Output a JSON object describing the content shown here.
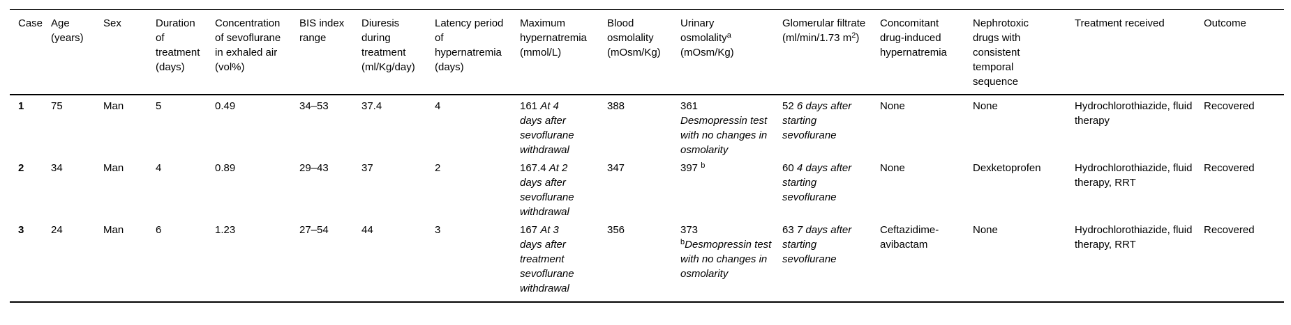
{
  "colors": {
    "background": "#ffffff",
    "text": "#000000",
    "rule": "#000000"
  },
  "table": {
    "columns": [
      {
        "key": "case",
        "label": [
          {
            "text": "Case"
          }
        ]
      },
      {
        "key": "age",
        "label": [
          {
            "text": "Age (years)"
          }
        ]
      },
      {
        "key": "sex",
        "label": [
          {
            "text": "Sex"
          }
        ]
      },
      {
        "key": "duration",
        "label": [
          {
            "text": "Duration of treatment (days)"
          }
        ]
      },
      {
        "key": "concentration",
        "label": [
          {
            "text": "Concentration of sevoflurane in exhaled air (vol%)"
          }
        ]
      },
      {
        "key": "bis",
        "label": [
          {
            "text": "BIS index range"
          }
        ]
      },
      {
        "key": "diuresis",
        "label": [
          {
            "text": "Diuresis during treatment (ml/Kg/day)"
          }
        ]
      },
      {
        "key": "latency",
        "label": [
          {
            "text": "Latency period of hypernatremia (days)"
          }
        ]
      },
      {
        "key": "max_hypernatremia",
        "label": [
          {
            "text": "Maximum hypernatremia (mmol/L)"
          }
        ]
      },
      {
        "key": "blood_osmolality",
        "label": [
          {
            "text": "Blood osmolality (mOsm/Kg)"
          }
        ]
      },
      {
        "key": "urinary_osmolality",
        "label": [
          {
            "text": "Urinary osmolality"
          },
          {
            "text": "a",
            "sup": true
          },
          {
            "text": " (mOsm/Kg)"
          }
        ]
      },
      {
        "key": "glomerular_filtrate",
        "label": [
          {
            "text": "Glomerular filtrate (ml/min/1.73 m"
          },
          {
            "text": "2",
            "sup": true
          },
          {
            "text": ")"
          }
        ]
      },
      {
        "key": "concomitant",
        "label": [
          {
            "text": "Concomitant drug-induced hypernatremia"
          }
        ]
      },
      {
        "key": "nephrotoxic",
        "label": [
          {
            "text": "Nephrotoxic drugs with consistent temporal sequence"
          }
        ]
      },
      {
        "key": "treatment",
        "label": [
          {
            "text": "Treatment received"
          }
        ]
      },
      {
        "key": "outcome",
        "label": [
          {
            "text": "Outcome"
          }
        ]
      }
    ],
    "rows": [
      {
        "case_id": "1",
        "cells": {
          "case": [
            {
              "text": "1",
              "bold": true
            }
          ],
          "age": [
            {
              "text": "75"
            }
          ],
          "sex": [
            {
              "text": "Man"
            }
          ],
          "duration": [
            {
              "text": "5"
            }
          ],
          "concentration": [
            {
              "text": "0.49"
            }
          ],
          "bis": [
            {
              "text": "34–53"
            }
          ],
          "diuresis": [
            {
              "text": "37.4"
            }
          ],
          "latency": [
            {
              "text": "4"
            }
          ],
          "max_hypernatremia": [
            {
              "text": "161 "
            },
            {
              "text": "At 4 days after sevoflurane withdrawal",
              "italic": true
            }
          ],
          "blood_osmolality": [
            {
              "text": "388"
            }
          ],
          "urinary_osmolality": [
            {
              "text": "361"
            },
            {
              "br": true
            },
            {
              "text": "Desmopressin test with no changes in osmolarity",
              "italic": true
            }
          ],
          "glomerular_filtrate": [
            {
              "text": "52 "
            },
            {
              "text": "6 days after starting sevoflurane",
              "italic": true
            }
          ],
          "concomitant": [
            {
              "text": "None"
            }
          ],
          "nephrotoxic": [
            {
              "text": "None"
            }
          ],
          "treatment": [
            {
              "text": "Hydrochlorothiazide, fluid therapy"
            }
          ],
          "outcome": [
            {
              "text": "Recovered"
            }
          ]
        }
      },
      {
        "case_id": "2",
        "cells": {
          "case": [
            {
              "text": "2",
              "bold": true
            }
          ],
          "age": [
            {
              "text": "34"
            }
          ],
          "sex": [
            {
              "text": "Man"
            }
          ],
          "duration": [
            {
              "text": "4"
            }
          ],
          "concentration": [
            {
              "text": "0.89"
            }
          ],
          "bis": [
            {
              "text": "29–43"
            }
          ],
          "diuresis": [
            {
              "text": "37"
            }
          ],
          "latency": [
            {
              "text": "2"
            }
          ],
          "max_hypernatremia": [
            {
              "text": "167.4 "
            },
            {
              "text": "At 2 days after sevoflurane withdrawal",
              "italic": true
            }
          ],
          "blood_osmolality": [
            {
              "text": "347"
            }
          ],
          "urinary_osmolality": [
            {
              "text": "397 "
            },
            {
              "text": "b",
              "sup": true
            }
          ],
          "glomerular_filtrate": [
            {
              "text": "60 "
            },
            {
              "text": "4 days after starting sevoflurane",
              "italic": true
            }
          ],
          "concomitant": [
            {
              "text": "None"
            }
          ],
          "nephrotoxic": [
            {
              "text": "Dexketoprofen"
            }
          ],
          "treatment": [
            {
              "text": "Hydrochlorothiazide, fluid therapy, RRT"
            }
          ],
          "outcome": [
            {
              "text": "Recovered"
            }
          ]
        }
      },
      {
        "case_id": "3",
        "cells": {
          "case": [
            {
              "text": "3",
              "bold": true
            }
          ],
          "age": [
            {
              "text": "24"
            }
          ],
          "sex": [
            {
              "text": "Man"
            }
          ],
          "duration": [
            {
              "text": "6"
            }
          ],
          "concentration": [
            {
              "text": "1.23"
            }
          ],
          "bis": [
            {
              "text": "27–54"
            }
          ],
          "diuresis": [
            {
              "text": "44"
            }
          ],
          "latency": [
            {
              "text": "3"
            }
          ],
          "max_hypernatremia": [
            {
              "text": "167 "
            },
            {
              "text": "At 3 days after treatment sevoflurane withdrawal",
              "italic": true
            }
          ],
          "blood_osmolality": [
            {
              "text": "356"
            }
          ],
          "urinary_osmolality": [
            {
              "text": "373"
            },
            {
              "br": true
            },
            {
              "text": "b",
              "sup": true
            },
            {
              "text": "Desmopressin test with no changes in osmolarity",
              "italic": true
            }
          ],
          "glomerular_filtrate": [
            {
              "text": "63 "
            },
            {
              "text": "7 days after starting sevoflurane",
              "italic": true
            }
          ],
          "concomitant": [
            {
              "text": "Ceftazidime-avibactam"
            }
          ],
          "nephrotoxic": [
            {
              "text": "None"
            }
          ],
          "treatment": [
            {
              "text": "Hydrochlorothiazide, fluid therapy, RRT"
            }
          ],
          "outcome": [
            {
              "text": "Recovered"
            }
          ]
        }
      }
    ]
  }
}
